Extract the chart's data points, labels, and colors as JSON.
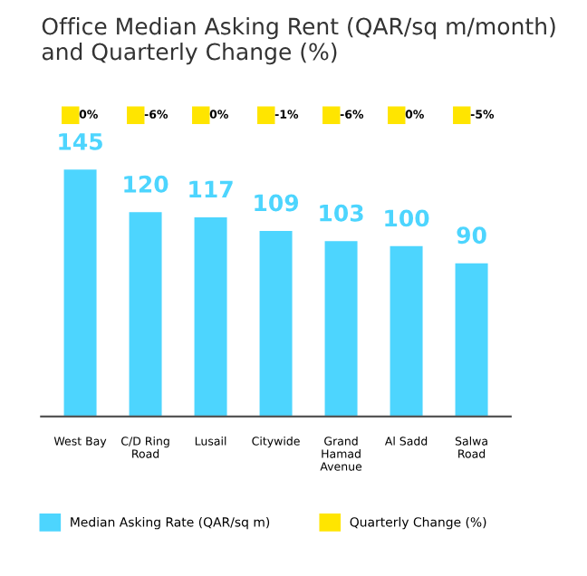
{
  "chart_data": [
    {
      "type": "other",
      "title": "Office Median Asking Rent (QAR/sq m/month)\nand Quarterly Change (%)",
      "categories": [
        null,
        null,
        null,
        null,
        null,
        null,
        null
      ],
      "series": [
        {
          "name": "Quarterly Change (%)",
          "color": "#ffe500",
          "values": [
            0,
            -6,
            0,
            -1,
            -6,
            0,
            -5
          ],
          "value_labels": [
            "0%",
            "-6%",
            "0%",
            "-1%",
            "-6%",
            "0%",
            "-5%"
          ]
        }
      ],
      "legend": "bottom"
    },
    {
      "type": "bar",
      "categories": [
        "West Bay",
        "C/D Ring\nRoad",
        "Lusail",
        "Citywide",
        "Grand\nHamad\nAvenue",
        "Al Sadd",
        "Salwa\nRoad"
      ],
      "series": [
        {
          "name": "Median Asking Rate (QAR/sq m)",
          "color": "#4dd5fe",
          "values": [
            145,
            120,
            117,
            109,
            103,
            100,
            90
          ]
        }
      ],
      "data_labels": true,
      "tick_labels": "x",
      "grid": false,
      "legend": "bottom"
    }
  ]
}
